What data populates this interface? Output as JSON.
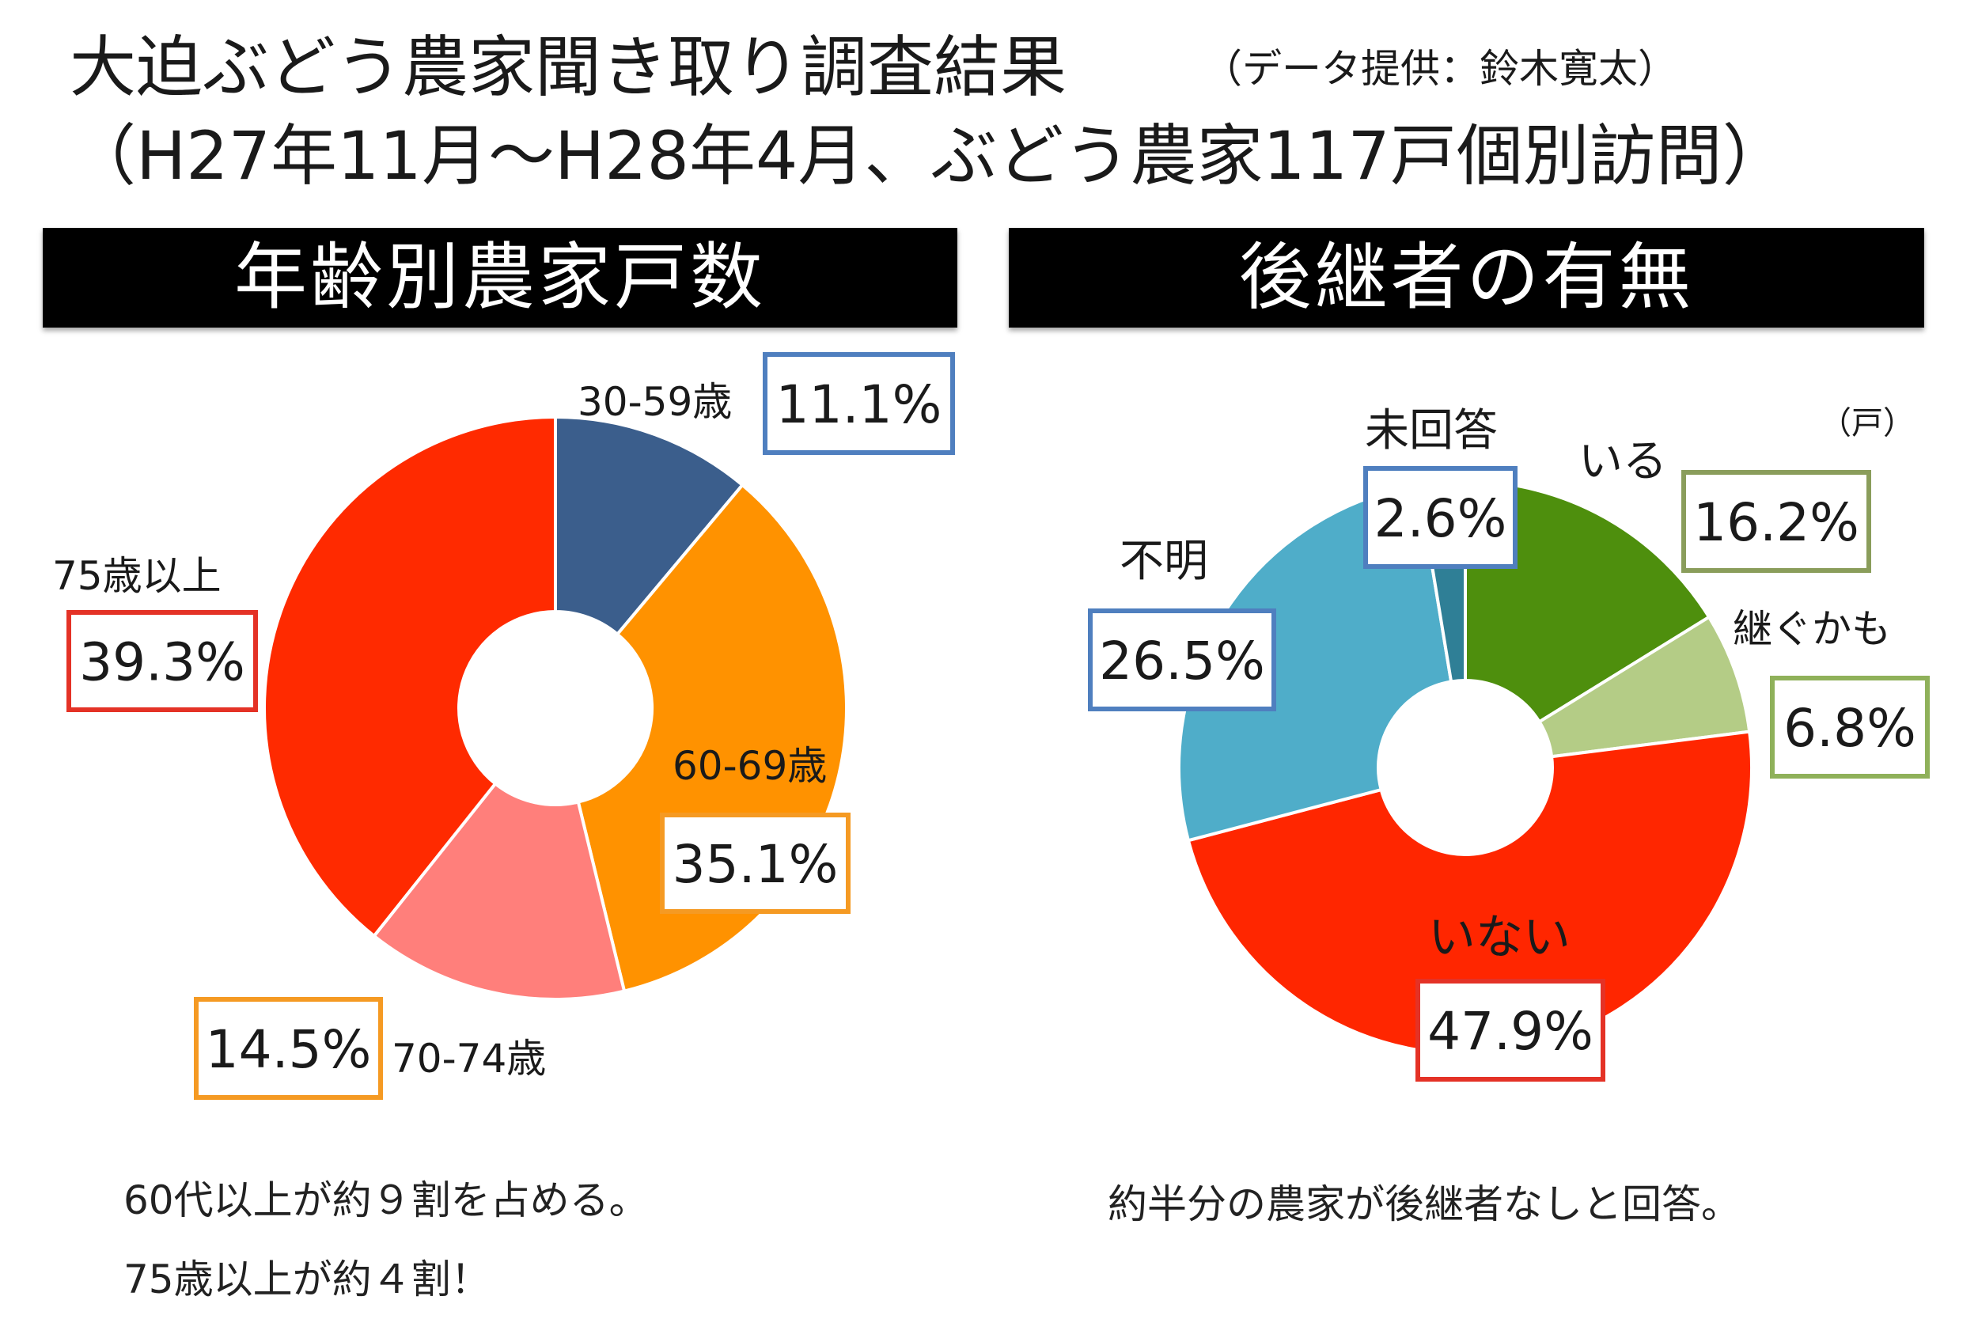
{
  "header": {
    "title_line1": "大迫ぶどう農家聞き取り調査結果",
    "credit": "（データ提供：鈴木寛太）",
    "title_line2": "（H27年11月〜H28年4月、ぶどう農家117戸個別訪問）"
  },
  "chart_data": [
    {
      "type": "pie",
      "donut": true,
      "title": "年齢別農家戸数",
      "categories": [
        "30-59歳",
        "60-69歳",
        "70-74歳",
        "75歳以上"
      ],
      "values": [
        11.1,
        35.1,
        14.5,
        39.3
      ],
      "value_labels": [
        "11.1%",
        "35.1%",
        "14.5%",
        "39.3%"
      ],
      "colors": [
        "#3b5e8c",
        "#ff9200",
        "#ff7f7b",
        "#ff2a00"
      ],
      "label_box_colors": [
        "#4f7fbf",
        "#f59a23",
        "#f59a23",
        "#e43226"
      ],
      "note_lines": [
        "60代以上が約９割を占める。",
        "75歳以上が約４割！"
      ]
    },
    {
      "type": "pie",
      "donut": true,
      "title": "後継者の有無",
      "unit": "（戸）",
      "categories": [
        "いる",
        "継ぐかも",
        "いない",
        "不明",
        "未回答"
      ],
      "values": [
        16.2,
        6.8,
        47.9,
        26.5,
        2.6
      ],
      "value_labels": [
        "16.2%",
        "6.8%",
        "47.9%",
        "26.5%",
        "2.6%"
      ],
      "colors": [
        "#4e8f0d",
        "#b4cc86",
        "#ff2600",
        "#4fadc9",
        "#2f7f96"
      ],
      "label_box_colors": [
        "#8a9d5b",
        "#8fb15a",
        "#e43226",
        "#4f7fbf",
        "#4f7fbf"
      ],
      "note_lines": [
        "約半分の農家が後継者なしと回答。"
      ]
    }
  ]
}
